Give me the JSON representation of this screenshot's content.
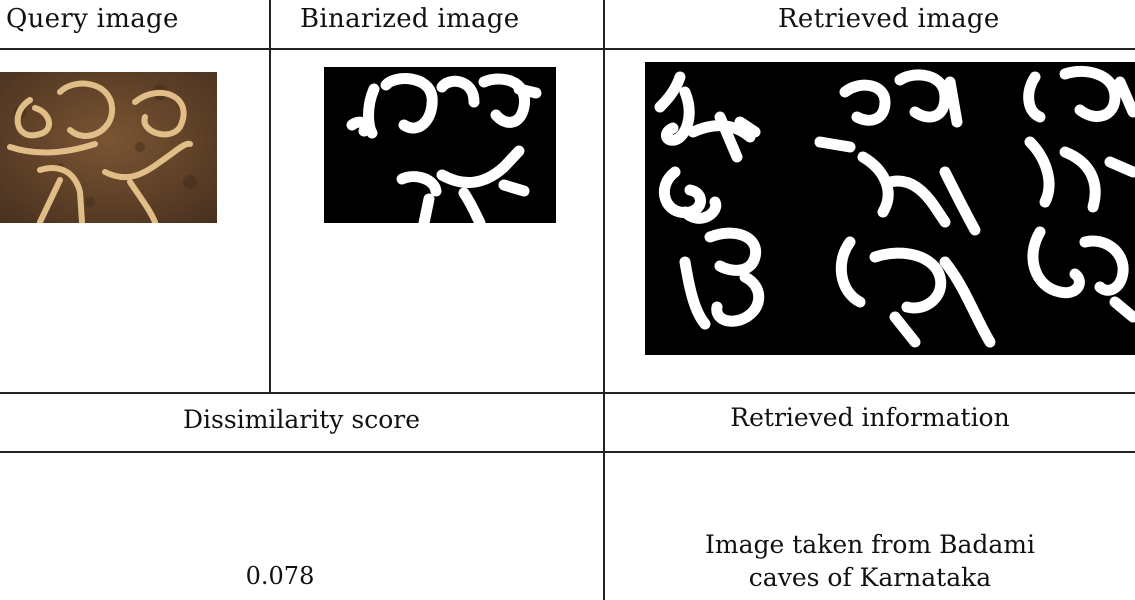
{
  "table": {
    "headers": {
      "query": "Query image",
      "binarized": "Binarized image",
      "retrieved": "Retrieved image"
    },
    "subheaders": {
      "score": "Dissimilarity score",
      "info": "Retrieved information"
    },
    "score_value": "0.078",
    "info_line1": "Image taken from Badami",
    "info_line2": "caves of Karnataka"
  },
  "colors": {
    "border": "#222222",
    "stone": "#6b4a2c",
    "engraving": "#e8c58d",
    "binary_bg": "#000000",
    "binary_fg": "#ffffff"
  }
}
